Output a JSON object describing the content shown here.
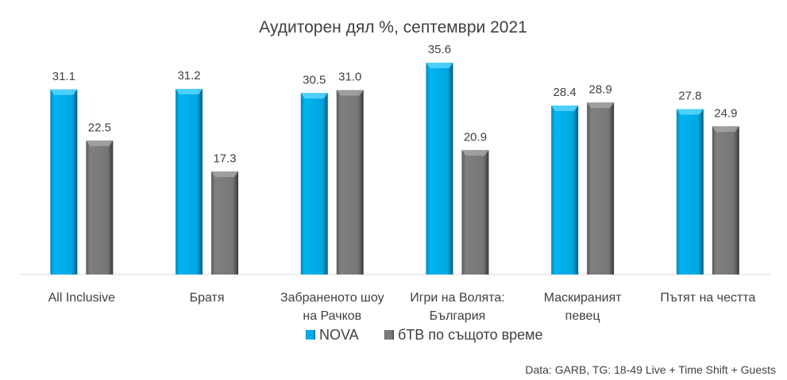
{
  "chart_data": {
    "type": "bar",
    "title": "Аудиторен дял %, септември 2021",
    "categories": [
      [
        "All Inclusive"
      ],
      [
        "Братя"
      ],
      [
        "Забраненото шоу",
        "на Рачков"
      ],
      [
        "Игри на Волята:",
        "България"
      ],
      [
        "Маскираният",
        "певец"
      ],
      [
        "Пътят на честта"
      ]
    ],
    "series": [
      {
        "name": "NOVA",
        "color": "#00B0F0",
        "values": [
          31.1,
          31.2,
          30.5,
          35.6,
          28.4,
          27.8
        ]
      },
      {
        "name": "бТВ по същото време",
        "color": "#7F7F7F",
        "values": [
          22.5,
          17.3,
          31.0,
          20.9,
          28.9,
          24.9
        ]
      }
    ],
    "ylim": [
      0,
      40
    ],
    "grid": false,
    "legend": "bottom",
    "xlabel": "",
    "ylabel": "",
    "footnote": "Data: GARB, TG: 18-49 Live + Time Shift + Guests"
  }
}
